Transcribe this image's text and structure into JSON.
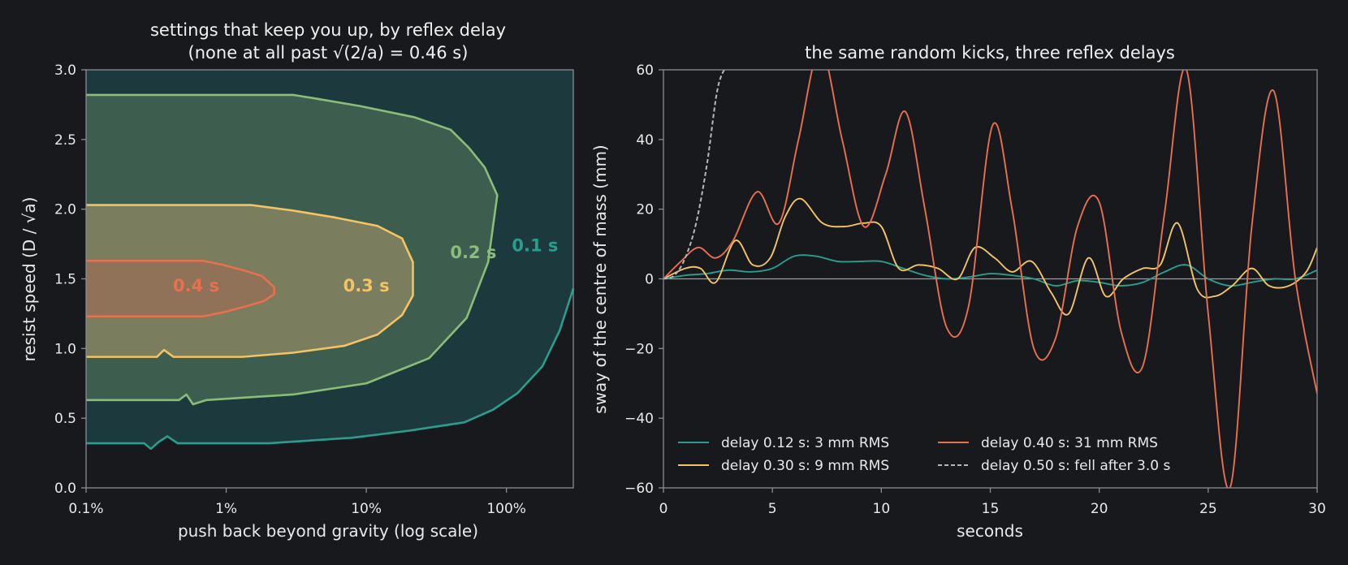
{
  "colors": {
    "background": "#18191c",
    "axes_frame": "#8a8d93",
    "text": "#e9e9e9",
    "teal": "#2a9d8f",
    "green": "#8abd7a",
    "yellow": "#f2c463",
    "orange": "#e9704f",
    "grey_dashed": "#b8b8b8",
    "fill_01": "#1c3a3d",
    "fill_02": "#3d5d4f",
    "fill_03": "#7a7d5e",
    "fill_04": "#8f7257"
  },
  "chart_data": [
    {
      "type": "contour",
      "title_line1": "settings that keep you up, by reflex delay",
      "title_line2": "(none at all past √(2/a) = 0.46 s)",
      "xlabel": "push back beyond gravity (log scale)",
      "ylabel": "resist speed (D / √a)",
      "x_scale": "log",
      "xlim": [
        0.001,
        3.0
      ],
      "ylim": [
        0.0,
        3.0
      ],
      "x_ticks": [
        0.001,
        0.01,
        0.1,
        1.0
      ],
      "x_tick_labels": [
        "0.1%",
        "1%",
        "10%",
        "100%"
      ],
      "y_ticks": [
        0.0,
        0.5,
        1.0,
        1.5,
        2.0,
        2.5,
        3.0
      ],
      "y_tick_labels": [
        "0.0",
        "0.5",
        "1.0",
        "1.5",
        "2.0",
        "2.5",
        "3.0"
      ],
      "grid": false,
      "regions": [
        {
          "label": "0.1 s",
          "color_key": "teal",
          "fill_key": "fill_01",
          "label_at": [
            1.6,
            1.74
          ],
          "boundary": [
            [
              0.001,
              0.32
            ],
            [
              0.0026,
              0.32
            ],
            [
              0.0029,
              0.28
            ],
            [
              0.0033,
              0.33
            ],
            [
              0.0038,
              0.37
            ],
            [
              0.0045,
              0.32
            ],
            [
              0.02,
              0.32
            ],
            [
              0.08,
              0.36
            ],
            [
              0.2,
              0.41
            ],
            [
              0.5,
              0.47
            ],
            [
              0.8,
              0.56
            ],
            [
              1.2,
              0.68
            ],
            [
              1.8,
              0.87
            ],
            [
              2.4,
              1.13
            ],
            [
              3.0,
              1.43
            ]
          ]
        },
        {
          "label": "0.2 s",
          "color_key": "green",
          "fill_key": "fill_02",
          "label_at": [
            0.58,
            1.69
          ],
          "points": [
            [
              0.001,
              0.63
            ],
            [
              0.0046,
              0.63
            ],
            [
              0.0052,
              0.67
            ],
            [
              0.0058,
              0.6
            ],
            [
              0.0072,
              0.63
            ],
            [
              0.03,
              0.67
            ],
            [
              0.1,
              0.75
            ],
            [
              0.28,
              0.93
            ],
            [
              0.52,
              1.22
            ],
            [
              0.74,
              1.62
            ],
            [
              0.86,
              2.1
            ],
            [
              0.7,
              2.3
            ],
            [
              0.54,
              2.44
            ],
            [
              0.4,
              2.57
            ],
            [
              0.22,
              2.66
            ],
            [
              0.09,
              2.74
            ],
            [
              0.04,
              2.8
            ],
            [
              0.03,
              2.82
            ],
            [
              0.001,
              2.82
            ]
          ]
        },
        {
          "label": "0.3 s",
          "color_key": "yellow",
          "fill_key": "fill_03",
          "label_at": [
            0.1,
            1.45
          ],
          "points": [
            [
              0.001,
              0.94
            ],
            [
              0.0032,
              0.94
            ],
            [
              0.0036,
              0.99
            ],
            [
              0.0042,
              0.94
            ],
            [
              0.013,
              0.94
            ],
            [
              0.03,
              0.97
            ],
            [
              0.07,
              1.02
            ],
            [
              0.12,
              1.1
            ],
            [
              0.18,
              1.24
            ],
            [
              0.215,
              1.38
            ],
            [
              0.215,
              1.62
            ],
            [
              0.18,
              1.79
            ],
            [
              0.12,
              1.88
            ],
            [
              0.06,
              1.94
            ],
            [
              0.03,
              1.99
            ],
            [
              0.015,
              2.03
            ],
            [
              0.001,
              2.03
            ]
          ]
        },
        {
          "label": "0.4 s",
          "color_key": "orange",
          "fill_key": "fill_04",
          "label_at": [
            0.0061,
            1.45
          ],
          "points": [
            [
              0.001,
              1.23
            ],
            [
              0.0068,
              1.23
            ],
            [
              0.0095,
              1.26
            ],
            [
              0.0135,
              1.3
            ],
            [
              0.0185,
              1.34
            ],
            [
              0.022,
              1.39
            ],
            [
              0.022,
              1.44
            ],
            [
              0.018,
              1.52
            ],
            [
              0.0135,
              1.56
            ],
            [
              0.0095,
              1.6
            ],
            [
              0.0068,
              1.63
            ],
            [
              0.001,
              1.63
            ]
          ]
        }
      ]
    },
    {
      "type": "line",
      "title": "the same random kicks, three reflex delays",
      "xlabel": "seconds",
      "ylabel": "sway of the centre of mass (mm)",
      "xlim": [
        0,
        30
      ],
      "ylim": [
        -60,
        60
      ],
      "x_ticks": [
        0,
        5,
        10,
        15,
        20,
        25,
        30
      ],
      "y_ticks": [
        -60,
        -40,
        -20,
        0,
        20,
        40,
        60
      ],
      "grid": false,
      "zero_line": true,
      "legend_placement": "lower-left",
      "series": [
        {
          "name": "delay 0.12 s: 3 mm RMS",
          "color_key": "teal",
          "dash": false,
          "x": [
            0,
            1,
            2,
            3,
            4,
            5,
            6,
            7,
            8,
            9,
            10,
            11,
            12,
            13,
            14,
            15,
            16,
            17,
            18,
            19,
            20,
            21,
            22,
            23,
            24,
            25,
            26,
            27,
            28,
            29,
            30
          ],
          "y": [
            0,
            1,
            1.5,
            2.5,
            2,
            3,
            6.5,
            6.5,
            5,
            5,
            5,
            3,
            1,
            0,
            0.5,
            1.5,
            1,
            0,
            -2,
            -0.5,
            -1,
            -2,
            -1,
            2,
            4,
            0,
            -2,
            -1,
            0,
            0,
            2.5
          ]
        },
        {
          "name": "delay 0.30 s: 9 mm RMS",
          "color_key": "yellow",
          "dash": false,
          "x": [
            0,
            1,
            1.7,
            2.4,
            3.3,
            4.1,
            4.9,
            5.6,
            6.3,
            7.3,
            8.3,
            9.2,
            10,
            10.8,
            11.7,
            12.6,
            13.5,
            14.3,
            15.2,
            16,
            16.9,
            17.8,
            18.6,
            19.5,
            20.3,
            21.1,
            22,
            22.8,
            23.6,
            24.5,
            25.3,
            26.1,
            27,
            27.8,
            28.7,
            29.5,
            30
          ],
          "y": [
            0,
            3,
            3,
            -1,
            11,
            4,
            6,
            18,
            23,
            16,
            15,
            16,
            15,
            3,
            4,
            3,
            0,
            9,
            6,
            2,
            5,
            -4,
            -10,
            6,
            -5,
            0,
            3,
            4,
            16,
            -3,
            -5,
            -2,
            3,
            -2,
            -2,
            2,
            9
          ]
        },
        {
          "name": "delay 0.40 s: 31 mm RMS",
          "color_key": "orange",
          "dash": false,
          "x": [
            0,
            0.8,
            1.6,
            2.4,
            3.2,
            4.3,
            5.3,
            6.2,
            7.2,
            8.2,
            9.2,
            10.2,
            11.1,
            12,
            13,
            14,
            15.1,
            16,
            17,
            18,
            19,
            20,
            21,
            22,
            23,
            24,
            25,
            26,
            27,
            28,
            29,
            30
          ],
          "y": [
            0,
            5,
            9,
            6,
            11,
            25,
            16,
            40,
            66,
            40,
            15,
            30,
            48,
            20,
            -14,
            -8,
            44,
            20,
            -20,
            -17,
            15,
            22,
            -15,
            -25,
            19,
            60,
            -10,
            -60,
            15,
            54,
            0,
            -33
          ]
        },
        {
          "name": "delay 0.50 s: fell after 3.0 s",
          "color_key": "grey_dashed",
          "dash": true,
          "x": [
            0,
            0.5,
            1,
            1.5,
            2,
            2.5,
            3.0
          ],
          "y": [
            0,
            1,
            6,
            16,
            33,
            55,
            62
          ]
        }
      ]
    }
  ]
}
